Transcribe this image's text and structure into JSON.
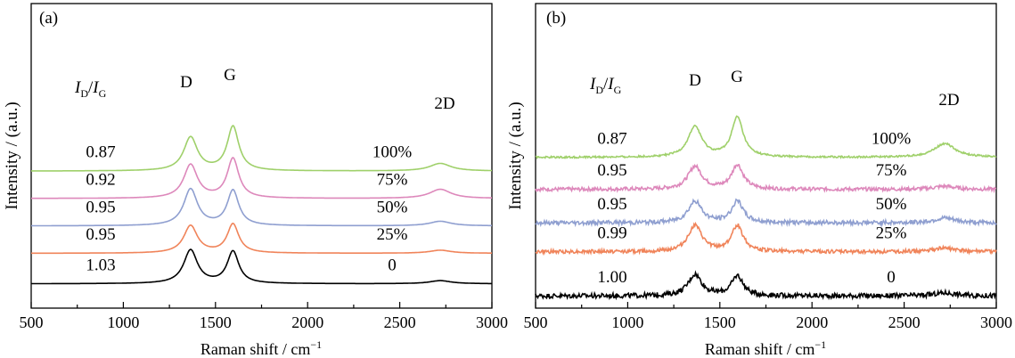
{
  "chart_data": [
    {
      "type": "line",
      "panel_label": "(a)",
      "xlabel": "Raman shift / cm",
      "xlabel_sup": "−1",
      "ylabel": "Intensity / (a.u.)",
      "xlim": [
        500,
        3000
      ],
      "xticks": [
        "500",
        "1000",
        "1500",
        "2000",
        "2500",
        "3000"
      ],
      "ratio_header": {
        "i1": "I",
        "s1": "D",
        "slash": "/",
        "i2": "I",
        "s2": "G"
      },
      "peak_labels": {
        "D": "D",
        "G": "G",
        "2D": "2D"
      },
      "series": [
        {
          "name": "0",
          "ratio": "1.03",
          "color": "#000000",
          "baseline": 0.08,
          "d_height": 0.11,
          "g_height": 0.105,
          "d2_height": 0.01,
          "noise": 0.0
        },
        {
          "name": "25%",
          "ratio": "0.95",
          "color": "#f0845a",
          "baseline": 0.18,
          "d_height": 0.09,
          "g_height": 0.095,
          "d2_height": 0.01,
          "noise": 0.0
        },
        {
          "name": "50%",
          "ratio": "0.95",
          "color": "#8f9fd0",
          "baseline": 0.27,
          "d_height": 0.12,
          "g_height": 0.115,
          "d2_height": 0.015,
          "noise": 0.0
        },
        {
          "name": "75%",
          "ratio": "0.92",
          "color": "#dd88bb",
          "baseline": 0.36,
          "d_height": 0.11,
          "g_height": 0.13,
          "d2_height": 0.03,
          "noise": 0.0
        },
        {
          "name": "100%",
          "ratio": "0.87",
          "color": "#9fd06a",
          "baseline": 0.45,
          "d_height": 0.11,
          "g_height": 0.145,
          "d2_height": 0.025,
          "noise": 0.0
        }
      ]
    },
    {
      "type": "line",
      "panel_label": "(b)",
      "xlabel": "Raman shift / cm",
      "xlabel_sup": "−1",
      "ylabel": "Intensity / (a.u.)",
      "xlim": [
        500,
        3000
      ],
      "xticks": [
        "500",
        "1000",
        "1500",
        "2000",
        "2500",
        "3000"
      ],
      "ratio_header": {
        "i1": "I",
        "s1": "D",
        "slash": "/",
        "i2": "I",
        "s2": "G"
      },
      "peak_labels": {
        "D": "D",
        "G": "G",
        "2D": "2D"
      },
      "series": [
        {
          "name": "0",
          "ratio": "1.00",
          "color": "#000000",
          "baseline": 0.04,
          "d_height": 0.07,
          "g_height": 0.065,
          "d2_height": 0.01,
          "noise": 0.008
        },
        {
          "name": "25%",
          "ratio": "0.99",
          "color": "#f0845a",
          "baseline": 0.185,
          "d_height": 0.085,
          "g_height": 0.085,
          "d2_height": 0.012,
          "noise": 0.006
        },
        {
          "name": "50%",
          "ratio": "0.95",
          "color": "#8f9fd0",
          "baseline": 0.28,
          "d_height": 0.07,
          "g_height": 0.07,
          "d2_height": 0.015,
          "noise": 0.007
        },
        {
          "name": "75%",
          "ratio": "0.95",
          "color": "#dd88bb",
          "baseline": 0.39,
          "d_height": 0.075,
          "g_height": 0.08,
          "d2_height": 0.01,
          "noise": 0.006
        },
        {
          "name": "100%",
          "ratio": "0.87",
          "color": "#9fd06a",
          "baseline": 0.495,
          "d_height": 0.1,
          "g_height": 0.13,
          "d2_height": 0.045,
          "noise": 0.003
        }
      ]
    }
  ]
}
